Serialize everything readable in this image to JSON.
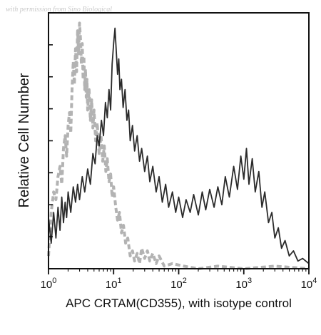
{
  "watermark": "with permission from Sino Biological",
  "chart_data": {
    "type": "line",
    "xlabel": "APC CRTAM(CD355), with isotype control",
    "ylabel": "Relative Cell Number",
    "xscale": "log",
    "xlim": [
      1,
      10000
    ],
    "ylim": [
      0,
      1
    ],
    "xticks": [
      {
        "value": 1,
        "base": "10",
        "exp": "0"
      },
      {
        "value": 10,
        "base": "10",
        "exp": "1"
      },
      {
        "value": 100,
        "base": "10",
        "exp": "2"
      },
      {
        "value": 1000,
        "base": "10",
        "exp": "3"
      },
      {
        "value": 10000,
        "base": "10",
        "exp": "4"
      }
    ],
    "ytick_count": 9,
    "grid": false,
    "series": [
      {
        "style": "dashed",
        "color": "#b3b3b3",
        "points": [
          [
            1.0,
            0.05
          ],
          [
            1.1,
            0.22
          ],
          [
            1.2,
            0.3
          ],
          [
            1.3,
            0.27
          ],
          [
            1.4,
            0.36
          ],
          [
            1.5,
            0.4
          ],
          [
            1.6,
            0.33
          ],
          [
            1.7,
            0.47
          ],
          [
            1.8,
            0.52
          ],
          [
            1.9,
            0.44
          ],
          [
            2.0,
            0.56
          ],
          [
            2.1,
            0.61
          ],
          [
            2.2,
            0.53
          ],
          [
            2.3,
            0.7
          ],
          [
            2.4,
            0.81
          ],
          [
            2.5,
            0.72
          ],
          [
            2.6,
            0.86
          ],
          [
            2.7,
            0.77
          ],
          [
            2.8,
            0.93
          ],
          [
            2.9,
            0.84
          ],
          [
            3.0,
            0.96
          ],
          [
            3.1,
            0.9
          ],
          [
            3.2,
            0.8
          ],
          [
            3.3,
            0.88
          ],
          [
            3.4,
            0.74
          ],
          [
            3.5,
            0.83
          ],
          [
            3.6,
            0.7
          ],
          [
            3.7,
            0.78
          ],
          [
            3.8,
            0.67
          ],
          [
            3.9,
            0.74
          ],
          [
            4.0,
            0.62
          ],
          [
            4.2,
            0.7
          ],
          [
            4.4,
            0.58
          ],
          [
            4.6,
            0.66
          ],
          [
            4.8,
            0.55
          ],
          [
            5.0,
            0.62
          ],
          [
            5.3,
            0.5
          ],
          [
            5.6,
            0.57
          ],
          [
            6.0,
            0.45
          ],
          [
            6.4,
            0.52
          ],
          [
            6.8,
            0.42
          ],
          [
            7.2,
            0.48
          ],
          [
            7.6,
            0.38
          ],
          [
            8.0,
            0.43
          ],
          [
            8.5,
            0.34
          ],
          [
            9.0,
            0.37
          ],
          [
            9.5,
            0.28
          ],
          [
            10.0,
            0.32
          ],
          [
            10.8,
            0.24
          ],
          [
            11.5,
            0.19
          ],
          [
            12.3,
            0.22
          ],
          [
            13.2,
            0.14
          ],
          [
            14.2,
            0.17
          ],
          [
            15.3,
            0.1
          ],
          [
            16.5,
            0.12
          ],
          [
            18.0,
            0.05
          ],
          [
            19.5,
            0.07
          ],
          [
            21.0,
            0.03
          ],
          [
            23.0,
            0.06
          ],
          [
            25.0,
            0.02
          ],
          [
            27.0,
            0.08
          ],
          [
            30.0,
            0.04
          ],
          [
            33.0,
            0.07
          ],
          [
            36.0,
            0.03
          ],
          [
            40.0,
            0.06
          ],
          [
            45.0,
            0.02
          ],
          [
            50.0,
            0.05
          ],
          [
            60.0,
            0.01
          ],
          [
            80.0,
            0.02
          ],
          [
            120.0,
            0.01
          ],
          [
            200.0,
            0.0
          ],
          [
            400.0,
            0.01
          ],
          [
            1000.0,
            0.0
          ],
          [
            3000.0,
            0.01
          ],
          [
            10000.0,
            0.0
          ]
        ]
      },
      {
        "style": "solid",
        "color": "#2b2b2b",
        "points": [
          [
            1.0,
            0.2
          ],
          [
            1.1,
            0.1
          ],
          [
            1.2,
            0.22
          ],
          [
            1.3,
            0.12
          ],
          [
            1.4,
            0.24
          ],
          [
            1.5,
            0.15
          ],
          [
            1.6,
            0.28
          ],
          [
            1.7,
            0.18
          ],
          [
            1.8,
            0.26
          ],
          [
            1.9,
            0.2
          ],
          [
            2.0,
            0.3
          ],
          [
            2.2,
            0.22
          ],
          [
            2.4,
            0.32
          ],
          [
            2.6,
            0.26
          ],
          [
            2.8,
            0.33
          ],
          [
            3.0,
            0.27
          ],
          [
            3.3,
            0.36
          ],
          [
            3.6,
            0.3
          ],
          [
            4.0,
            0.39
          ],
          [
            4.4,
            0.33
          ],
          [
            4.8,
            0.45
          ],
          [
            5.2,
            0.41
          ],
          [
            5.6,
            0.52
          ],
          [
            6.0,
            0.48
          ],
          [
            6.5,
            0.58
          ],
          [
            7.0,
            0.52
          ],
          [
            7.5,
            0.65
          ],
          [
            8.0,
            0.59
          ],
          [
            8.5,
            0.7
          ],
          [
            9.0,
            0.62
          ],
          [
            9.5,
            0.8
          ],
          [
            10.0,
            0.88
          ],
          [
            10.5,
            0.94
          ],
          [
            11.0,
            0.85
          ],
          [
            11.5,
            0.76
          ],
          [
            12.0,
            0.82
          ],
          [
            12.5,
            0.7
          ],
          [
            13.2,
            0.74
          ],
          [
            14.0,
            0.63
          ],
          [
            15.0,
            0.7
          ],
          [
            16.0,
            0.58
          ],
          [
            17.0,
            0.62
          ],
          [
            18.0,
            0.5
          ],
          [
            19.5,
            0.56
          ],
          [
            21.0,
            0.46
          ],
          [
            23.0,
            0.52
          ],
          [
            25.0,
            0.42
          ],
          [
            27.0,
            0.47
          ],
          [
            30.0,
            0.38
          ],
          [
            33.0,
            0.44
          ],
          [
            36.0,
            0.34
          ],
          [
            40.0,
            0.4
          ],
          [
            45.0,
            0.3
          ],
          [
            50.0,
            0.36
          ],
          [
            56.0,
            0.26
          ],
          [
            63.0,
            0.33
          ],
          [
            70.0,
            0.24
          ],
          [
            80.0,
            0.3
          ],
          [
            90.0,
            0.22
          ],
          [
            100.0,
            0.28
          ],
          [
            115.0,
            0.2
          ],
          [
            130.0,
            0.27
          ],
          [
            150.0,
            0.22
          ],
          [
            170.0,
            0.29
          ],
          [
            200.0,
            0.21
          ],
          [
            230.0,
            0.3
          ],
          [
            260.0,
            0.23
          ],
          [
            300.0,
            0.31
          ],
          [
            350.0,
            0.24
          ],
          [
            400.0,
            0.32
          ],
          [
            460.0,
            0.25
          ],
          [
            520.0,
            0.36
          ],
          [
            600.0,
            0.28
          ],
          [
            700.0,
            0.4
          ],
          [
            800.0,
            0.31
          ],
          [
            900.0,
            0.44
          ],
          [
            1000.0,
            0.35
          ],
          [
            1100.0,
            0.47
          ],
          [
            1200.0,
            0.33
          ],
          [
            1350.0,
            0.43
          ],
          [
            1500.0,
            0.3
          ],
          [
            1700.0,
            0.38
          ],
          [
            1900.0,
            0.24
          ],
          [
            2100.0,
            0.3
          ],
          [
            2400.0,
            0.18
          ],
          [
            2700.0,
            0.22
          ],
          [
            3000.0,
            0.12
          ],
          [
            3400.0,
            0.16
          ],
          [
            3800.0,
            0.08
          ],
          [
            4300.0,
            0.11
          ],
          [
            5000.0,
            0.05
          ],
          [
            5800.0,
            0.07
          ],
          [
            6800.0,
            0.03
          ],
          [
            8000.0,
            0.04
          ],
          [
            10000.0,
            0.02
          ]
        ]
      }
    ]
  }
}
